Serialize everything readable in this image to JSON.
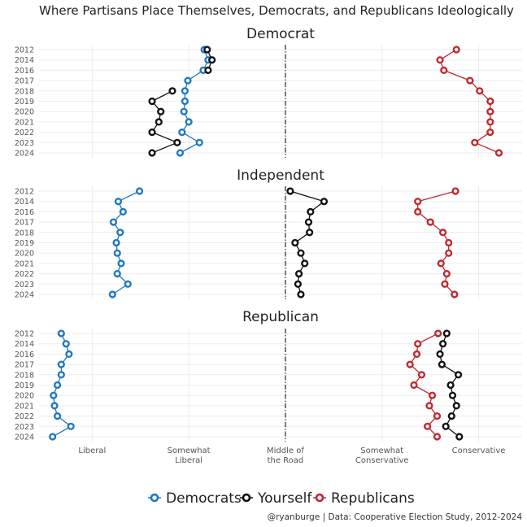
{
  "chart_data": {
    "type": "line",
    "title": "Where Partisans Place Themselves, Democrats, and Republicans Ideologically",
    "caption": "@ryanburge | Data: Cooperative Election Study, 2012-2024",
    "years": [
      "2012",
      "2014",
      "2016",
      "2017",
      "2018",
      "2019",
      "2020",
      "2021",
      "2022",
      "2023",
      "2024"
    ],
    "x_ticks": [
      {
        "value": 1,
        "lines": [
          "Liberal"
        ]
      },
      {
        "value": 2,
        "lines": [
          "Somewhat",
          "Liberal"
        ]
      },
      {
        "value": 3,
        "lines": [
          "Middle of",
          "the Road"
        ]
      },
      {
        "value": 4,
        "lines": [
          "Somewhat",
          "Conservative"
        ]
      },
      {
        "value": 5,
        "lines": [
          "Conservative"
        ]
      }
    ],
    "xlim": [
      0.45,
      5.45
    ],
    "reference_line": 3,
    "colors": {
      "Democrats": "#1f78c1",
      "Yourself": "#111111",
      "Republicans": "#c0282d"
    },
    "legend": [
      "Democrats",
      "Yourself",
      "Republicans"
    ],
    "facets": [
      {
        "name": "Democrat",
        "series": [
          {
            "name": "Democrats",
            "values": [
              2.16,
              2.2,
              2.15,
              1.99,
              1.96,
              1.96,
              1.95,
              2.0,
              1.93,
              2.11,
              1.91
            ]
          },
          {
            "name": "Yourself",
            "values": [
              2.19,
              2.24,
              2.2,
              null,
              1.83,
              1.62,
              1.71,
              1.69,
              1.62,
              1.88,
              1.62
            ]
          },
          {
            "name": "Republicans",
            "values": [
              4.77,
              4.6,
              4.64,
              4.91,
              5.01,
              5.12,
              5.12,
              5.12,
              5.12,
              4.96,
              5.21
            ]
          }
        ]
      },
      {
        "name": "Independent",
        "series": [
          {
            "name": "Democrats",
            "values": [
              1.49,
              1.27,
              1.32,
              1.22,
              1.29,
              1.25,
              1.26,
              1.3,
              1.26,
              1.37,
              1.21
            ]
          },
          {
            "name": "Yourself",
            "values": [
              3.05,
              3.4,
              3.26,
              3.24,
              3.25,
              3.1,
              3.16,
              3.2,
              3.14,
              3.13,
              3.16
            ]
          },
          {
            "name": "Republicans",
            "values": [
              4.76,
              4.37,
              4.37,
              4.5,
              4.63,
              4.69,
              4.69,
              4.61,
              4.67,
              4.65,
              4.75
            ]
          }
        ]
      },
      {
        "name": "Republican",
        "series": [
          {
            "name": "Democrats",
            "values": [
              0.68,
              0.73,
              0.76,
              0.68,
              0.68,
              0.64,
              0.6,
              0.61,
              0.64,
              0.78,
              0.59
            ]
          },
          {
            "name": "Yourself",
            "values": [
              4.67,
              4.63,
              4.6,
              4.62,
              4.79,
              4.71,
              4.73,
              4.77,
              4.72,
              4.66,
              4.8
            ]
          },
          {
            "name": "Republicans",
            "values": [
              4.58,
              4.37,
              4.36,
              4.29,
              4.41,
              4.33,
              4.52,
              4.49,
              4.57,
              4.47,
              4.57
            ]
          }
        ]
      }
    ]
  }
}
